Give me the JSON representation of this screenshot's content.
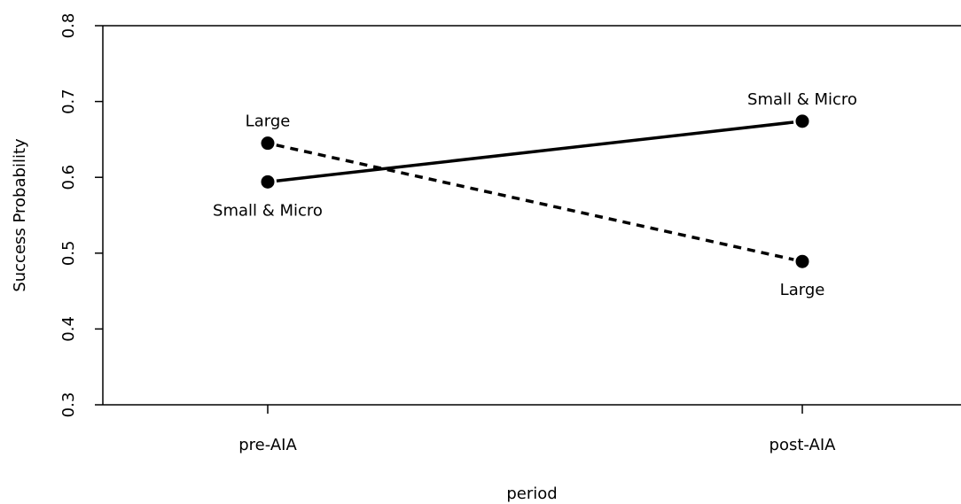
{
  "chart_data": {
    "type": "line",
    "xlabel": "period",
    "ylabel": "Success Probability",
    "categories": [
      "pre-AIA",
      "post-AIA"
    ],
    "ylim": [
      0.3,
      0.8
    ],
    "yticks": [
      "0.3",
      "0.4",
      "0.5",
      "0.6",
      "0.7",
      "0.8"
    ],
    "grid": false,
    "series": [
      {
        "name": "Small & Micro",
        "values": [
          0.594,
          0.674
        ],
        "line_style": "solid",
        "label_placement": [
          "below",
          "above"
        ]
      },
      {
        "name": "Large",
        "values": [
          0.645,
          0.489
        ],
        "line_style": "dashed",
        "label_placement": [
          "above",
          "below"
        ]
      }
    ]
  }
}
